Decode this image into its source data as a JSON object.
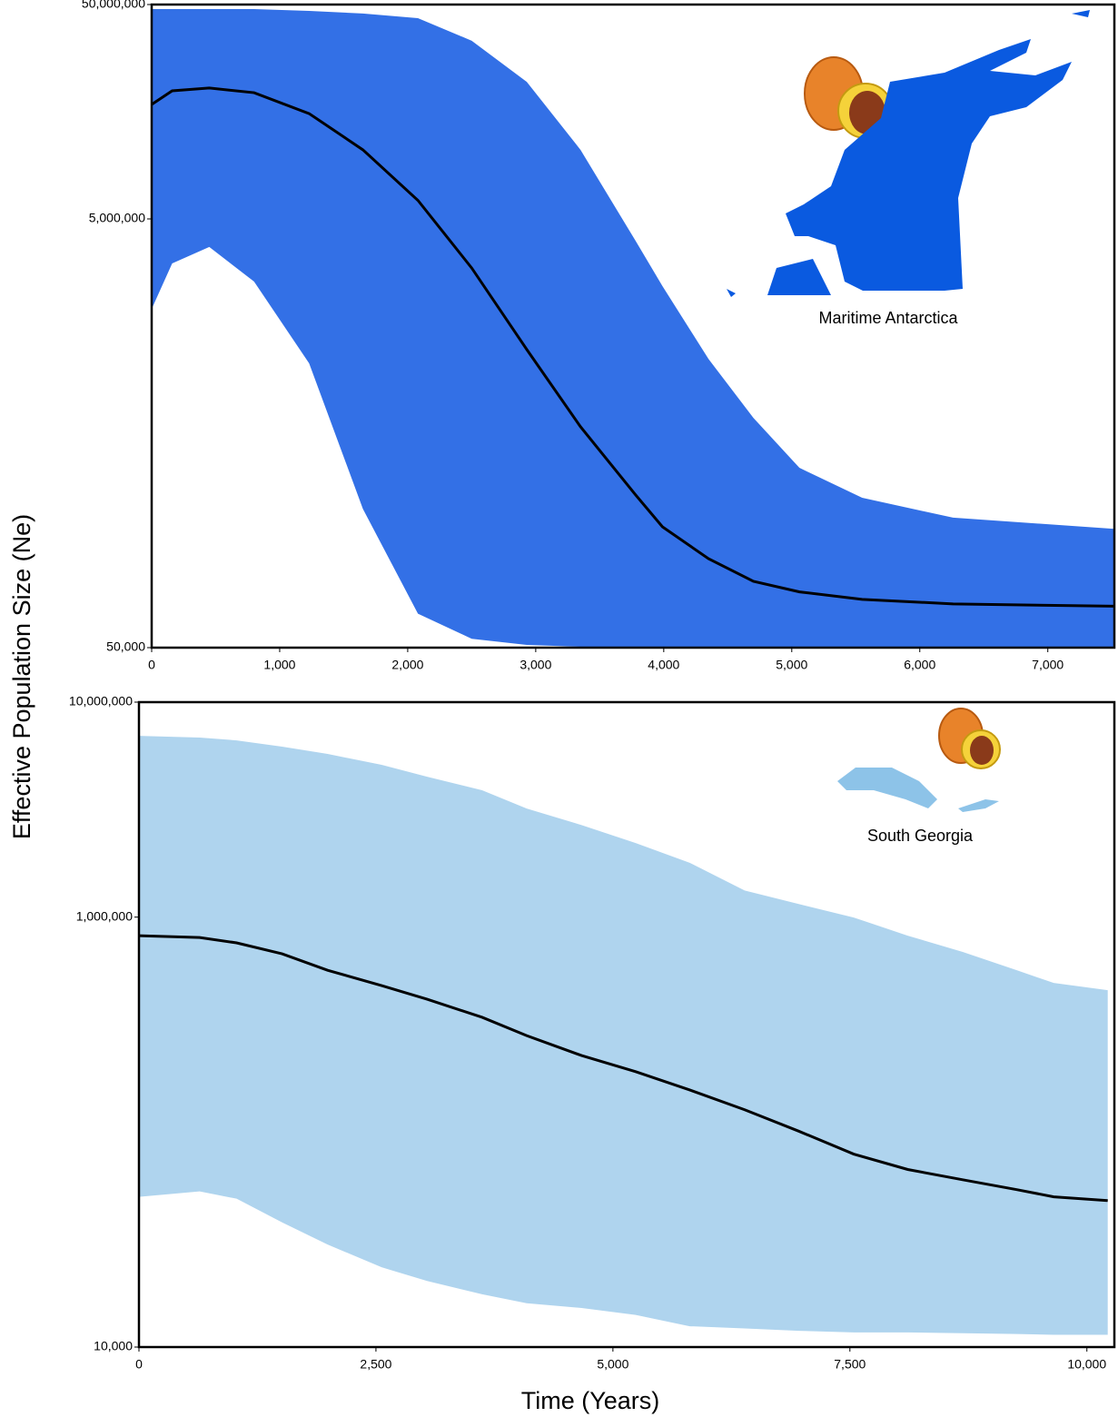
{
  "ylabel": "Effective Population Size (Ne)",
  "xlabel": "Time (Years)",
  "chart_data": [
    {
      "type": "band",
      "annotation": "Maritime Antarctica",
      "ylog": true,
      "band_color": "#3370e6",
      "line_color": "#000000",
      "xlim": [
        0,
        7520
      ],
      "ylim": [
        50000,
        50000000
      ],
      "xticks": [
        0,
        {
          "value": 1000,
          "label": "1,000"
        },
        {
          "value": 2000,
          "label": "2,000"
        },
        {
          "value": 3000,
          "label": "3,000"
        },
        {
          "value": 4000,
          "label": "4,000"
        },
        {
          "value": 5000,
          "label": "5,000"
        },
        {
          "value": 6000,
          "label": "6,000"
        },
        {
          "value": 7000,
          "label": "7,000"
        }
      ],
      "yticks": [
        {
          "value": 50000,
          "label": "50,000"
        },
        {
          "value": 5000000,
          "label": "5,000,000"
        },
        {
          "value": 50000000,
          "label": "50,000,000"
        }
      ],
      "x": [
        0,
        160,
        450,
        800,
        1230,
        1650,
        2080,
        2500,
        2930,
        3350,
        3780,
        3990,
        4350,
        4700,
        5060,
        5550,
        6260,
        7520
      ],
      "values": [
        17100000,
        19800000,
        20400000,
        19400000,
        15500000,
        10500000,
        6100000,
        2950000,
        1230000,
        536000,
        258000,
        183000,
        130000,
        102000,
        91000,
        84000,
        80000,
        78000
      ],
      "upper": [
        47600000,
        47600000,
        47600000,
        47600000,
        46700000,
        45400000,
        43200000,
        33900000,
        21800000,
        10500000,
        3950000,
        2430000,
        1110000,
        590000,
        345000,
        250000,
        202000,
        179000
      ],
      "lower": [
        1900000,
        3100000,
        3700000,
        2550000,
        1060000,
        222000,
        72000,
        55000,
        51500,
        50500,
        50500,
        50500,
        50500,
        50500,
        50500,
        50500,
        50500,
        50500
      ]
    },
    {
      "type": "band",
      "annotation": "South Georgia",
      "ylog": true,
      "band_color": "#afd4ee",
      "line_color": "#000000",
      "xlim": [
        0,
        10290
      ],
      "ylim": [
        10000,
        10000000
      ],
      "xticks": [
        0,
        {
          "value": 2500,
          "label": "2,500"
        },
        {
          "value": 5000,
          "label": "5,000"
        },
        {
          "value": 7500,
          "label": "7,500"
        },
        {
          "value": 10000,
          "label": "10,000"
        }
      ],
      "yticks": [
        {
          "value": 10000,
          "label": "10,000"
        },
        {
          "value": 1000000,
          "label": "1,000,000"
        },
        {
          "value": 10000000,
          "label": "10,000,000"
        }
      ],
      "x": [
        0,
        640,
        1030,
        1510,
        1990,
        2560,
        3040,
        3620,
        4090,
        4670,
        5240,
        5810,
        6390,
        6960,
        7540,
        8110,
        8690,
        9260,
        9650,
        10220
      ],
      "values": [
        820000,
        804000,
        759000,
        675000,
        566000,
        480000,
        415000,
        342000,
        281000,
        227000,
        191000,
        157000,
        127000,
        101000,
        79000,
        67000,
        60000,
        54000,
        50000,
        48000
      ],
      "upper": [
        6970000,
        6840000,
        6640000,
        6210000,
        5740000,
        5110000,
        4500000,
        3890000,
        3200000,
        2680000,
        2210000,
        1790000,
        1330000,
        1150000,
        996000,
        820000,
        689000,
        566000,
        494000,
        457000
      ],
      "lower": [
        50000,
        53000,
        49000,
        38000,
        30000,
        23500,
        20300,
        17600,
        16000,
        15200,
        14100,
        12500,
        12200,
        11900,
        11700,
        11700,
        11600,
        11500,
        11400,
        11400
      ]
    }
  ]
}
